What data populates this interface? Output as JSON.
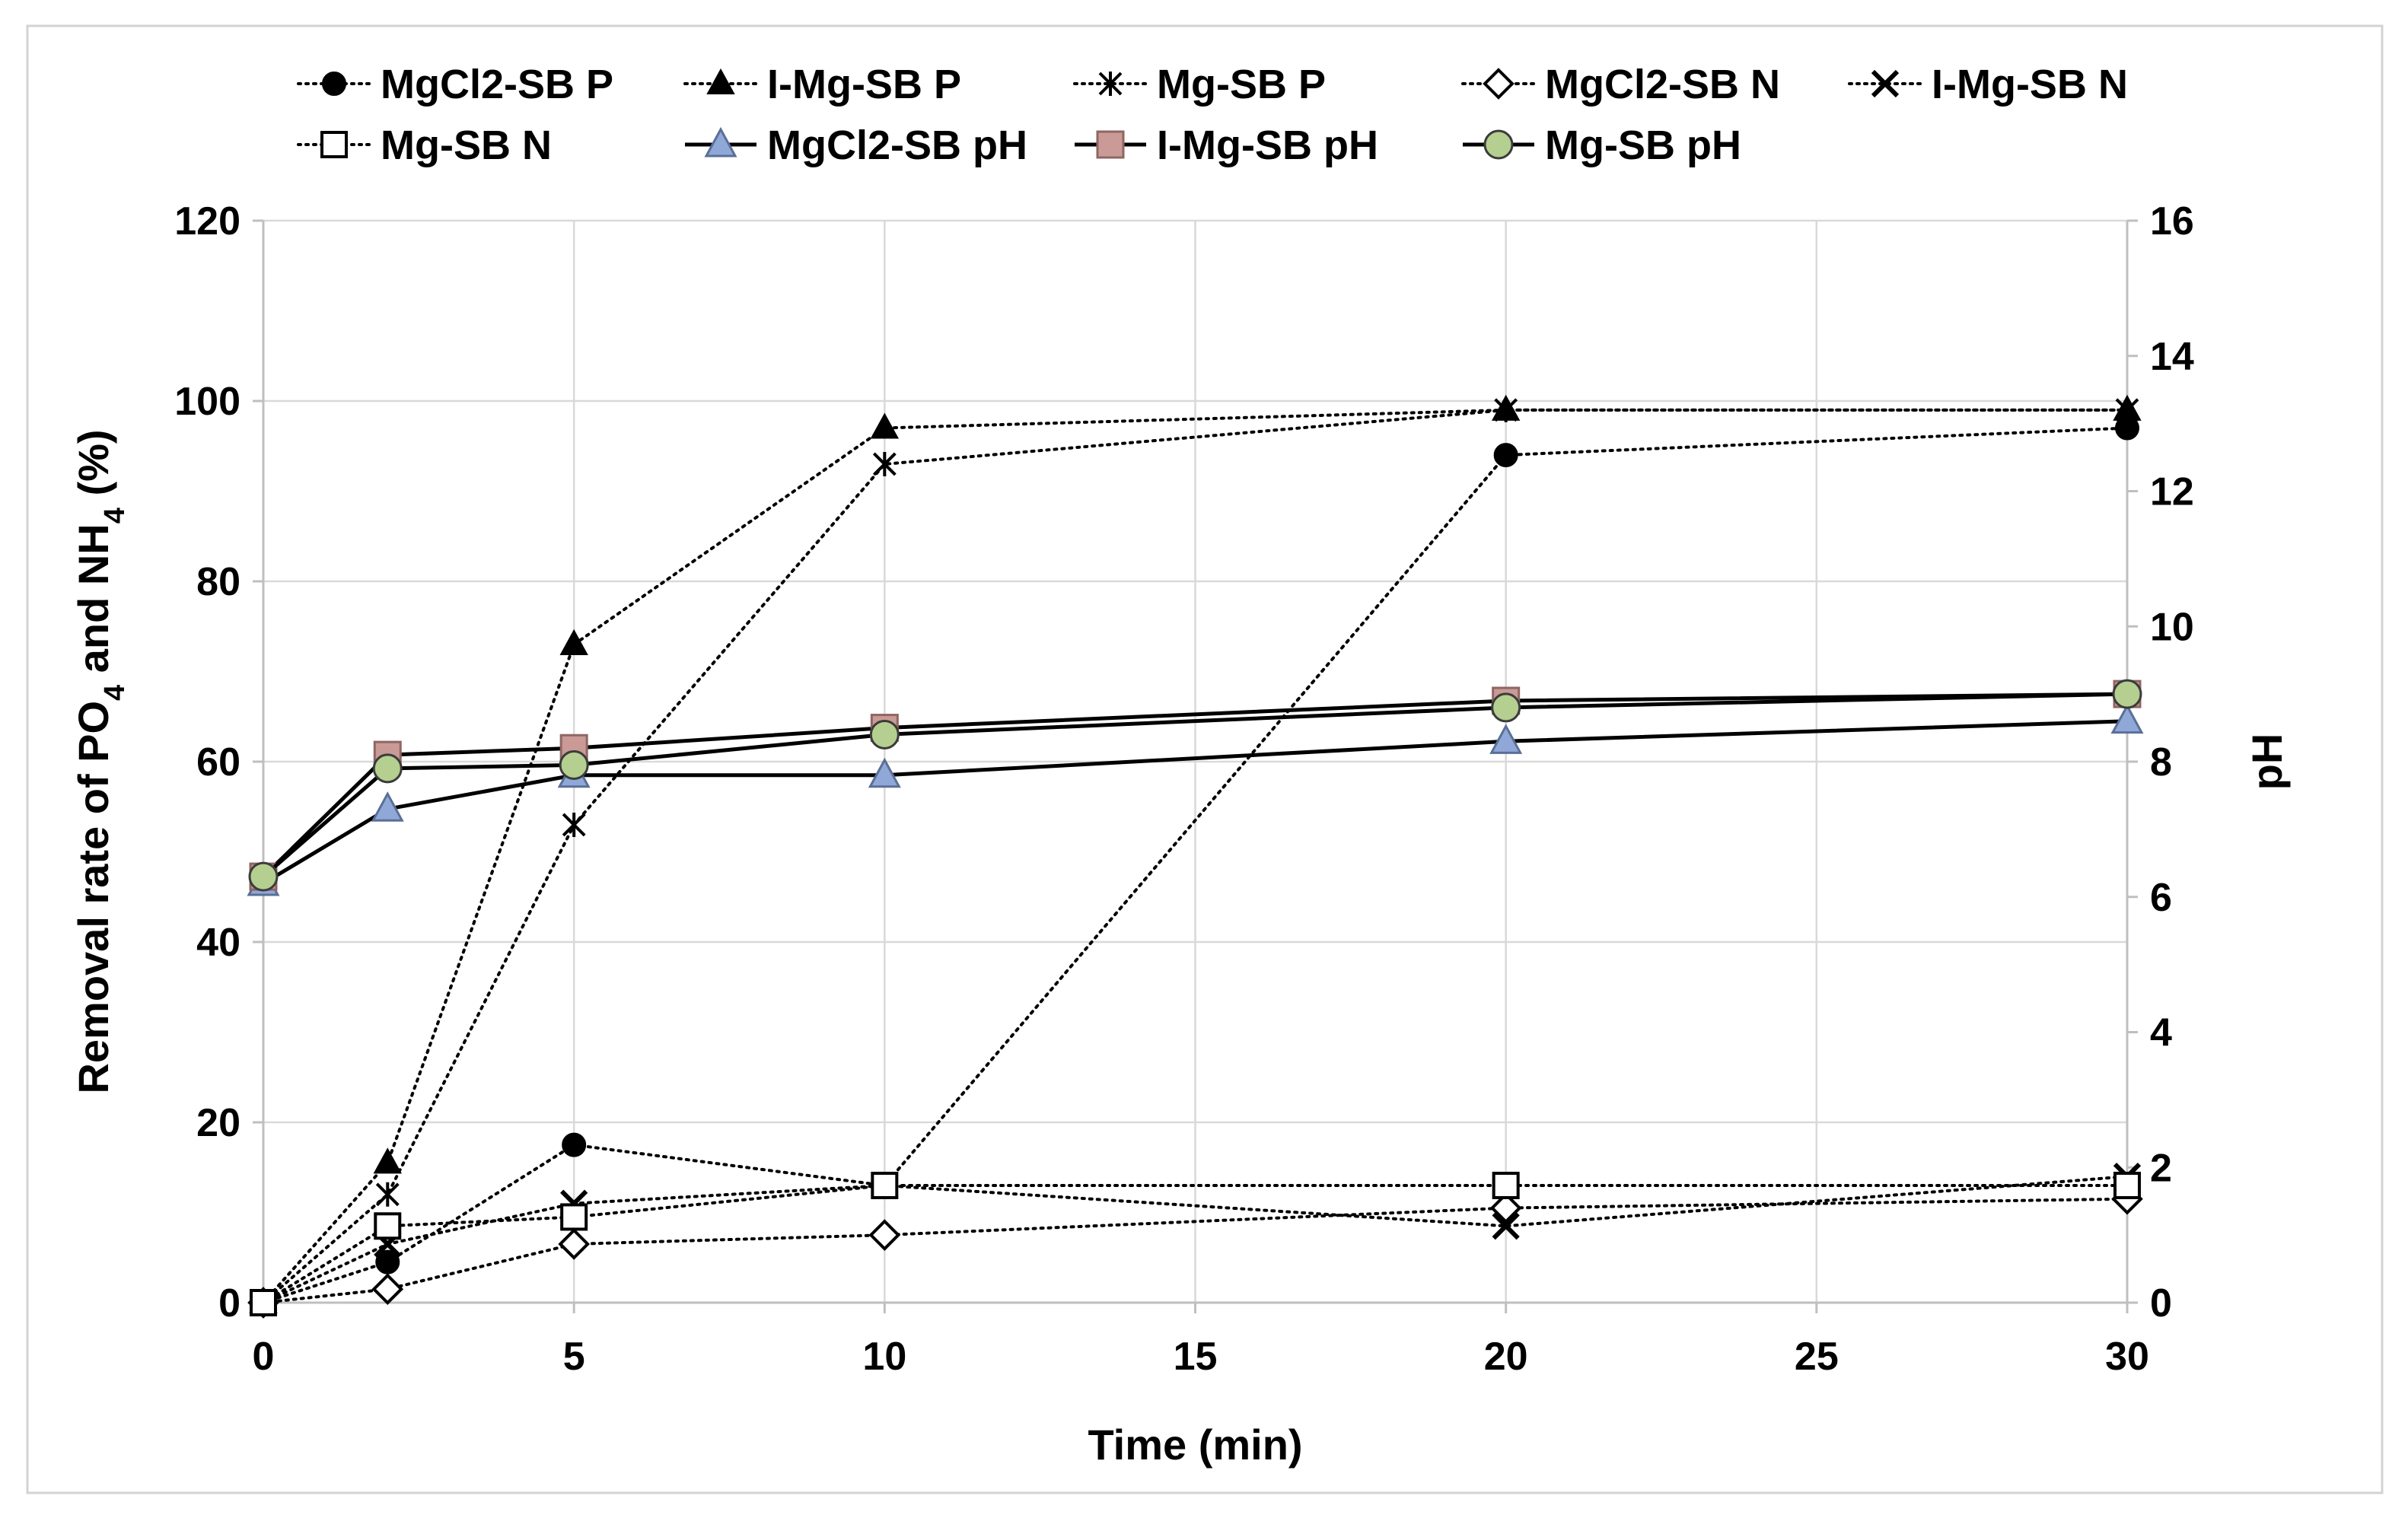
{
  "chart_data": {
    "type": "line",
    "title": "",
    "xlabel": "Time (min)",
    "ylabel": "Removal rate of PO4 and NH4 (%)",
    "ylabel_parts": [
      "Removal rate of PO",
      "4",
      " and NH",
      "4",
      " (%)"
    ],
    "y2label": "pH",
    "xlim": [
      0,
      30
    ],
    "ylim": [
      0,
      120
    ],
    "y2lim": [
      0,
      16
    ],
    "xticks": [
      0,
      5,
      10,
      15,
      20,
      25,
      30
    ],
    "yticks": [
      0,
      20,
      40,
      60,
      80,
      100,
      120
    ],
    "y2ticks": [
      0,
      2,
      4,
      6,
      8,
      10,
      12,
      14,
      16
    ],
    "grid": true,
    "legend_position": "top",
    "x": [
      0,
      2,
      5,
      10,
      20,
      30
    ],
    "series": [
      {
        "name": "MgCl2-SB P",
        "axis": "left",
        "style": "dotted",
        "marker": "filled-circle",
        "values": [
          0,
          4.5,
          17.5,
          13,
          94,
          97
        ]
      },
      {
        "name": "I-Mg-SB P",
        "axis": "left",
        "style": "dotted",
        "marker": "filled-triangle",
        "values": [
          0,
          15.5,
          73,
          97,
          99,
          99
        ]
      },
      {
        "name": "Mg-SB P",
        "axis": "left",
        "style": "dotted",
        "marker": "asterisk",
        "values": [
          0,
          12,
          53,
          93,
          99,
          99
        ]
      },
      {
        "name": "MgCl2-SB N",
        "axis": "left",
        "style": "dotted",
        "marker": "open-diamond",
        "values": [
          0,
          1.5,
          6.5,
          7.5,
          10.5,
          11.5
        ]
      },
      {
        "name": "I-Mg-SB N",
        "axis": "left",
        "style": "dotted",
        "marker": "x",
        "values": [
          0,
          6.5,
          11,
          13,
          8.5,
          14
        ]
      },
      {
        "name": "Mg-SB N",
        "axis": "left",
        "style": "dotted",
        "marker": "open-square",
        "values": [
          0,
          8.5,
          9.5,
          13,
          13,
          13
        ]
      },
      {
        "name": "MgCl2-SB pH",
        "axis": "right",
        "style": "solid",
        "marker": "blue-triangle",
        "color": "#8fa8d8",
        "values": [
          6.2,
          7.3,
          7.8,
          7.8,
          8.3,
          8.6
        ]
      },
      {
        "name": "I-Mg-SB pH",
        "axis": "right",
        "style": "solid",
        "marker": "red-square",
        "color": "#c99a96",
        "values": [
          6.3,
          8.1,
          8.2,
          8.5,
          8.9,
          9.0
        ]
      },
      {
        "name": "Mg-SB pH",
        "axis": "right",
        "style": "solid",
        "marker": "green-circle",
        "color": "#b4cf8f",
        "values": [
          6.3,
          7.9,
          7.95,
          8.4,
          8.8,
          9.0
        ]
      }
    ]
  }
}
